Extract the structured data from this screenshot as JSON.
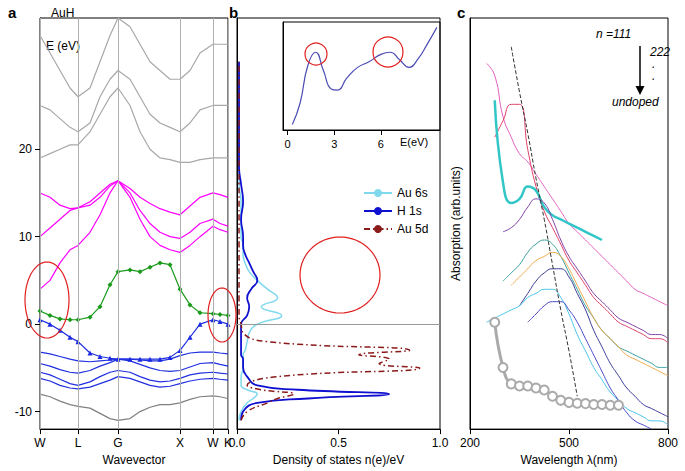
{
  "chart_data": [
    {
      "type": "line",
      "title": "a",
      "subtitle": "AuH",
      "x_label": "Wavevector",
      "y_label": "E (eV)",
      "x": [
        0,
        0.1,
        0.2,
        0.3,
        0.38,
        0.5,
        0.6,
        0.7,
        0.78,
        0.9,
        1.0,
        1.1,
        1.2,
        1.3,
        1.4,
        1.5,
        1.6,
        1.73,
        1.8,
        1.88
      ],
      "xlim": [
        0,
        1.88
      ],
      "xticks": [
        {
          "value": 0,
          "label": "W"
        },
        {
          "value": 0.38,
          "label": "L"
        },
        {
          "value": 0.78,
          "label": "G"
        },
        {
          "value": 1.4,
          "label": "X"
        },
        {
          "value": 1.73,
          "label": "W"
        },
        {
          "value": 1.88,
          "label": "K"
        }
      ],
      "ylim": [
        -12,
        35
      ],
      "yticks": [
        -10,
        0,
        10,
        20
      ],
      "grid": "x",
      "series": [
        {
          "color": "#a8a8a8",
          "marker": "none",
          "line_style": "solid",
          "values": [
            33,
            31,
            29,
            27,
            26,
            27,
            30,
            33,
            35,
            34,
            32,
            30,
            29,
            28,
            28,
            29,
            31,
            32,
            32,
            32
          ]
        },
        {
          "color": "#a8a8a8",
          "marker": "none",
          "line_style": "solid",
          "values": [
            25,
            24.5,
            23.5,
            22.5,
            22,
            23,
            26,
            28,
            29,
            28,
            26,
            24,
            23,
            22.5,
            22,
            23,
            24.5,
            25,
            25,
            25
          ]
        },
        {
          "color": "#a8a8a8",
          "marker": "none",
          "line_style": "solid",
          "values": [
            19,
            19.5,
            20,
            20.5,
            20.5,
            22,
            24,
            26,
            27,
            25,
            22,
            20,
            19,
            18.8,
            18.5,
            18.5,
            18.8,
            19,
            19,
            19
          ]
        },
        {
          "color": "#ff00ff",
          "marker": "none",
          "line_style": "solid",
          "values": [
            15,
            14.5,
            13.6,
            13.2,
            13.3,
            14,
            15,
            16,
            16.4,
            15.5,
            14.5,
            13.8,
            13.2,
            12.8,
            12.5,
            13.5,
            14.5,
            15,
            14.8,
            14.5
          ]
        },
        {
          "color": "#ff00ff",
          "marker": "none",
          "line_style": "solid",
          "values": [
            10,
            11,
            12,
            13,
            13.3,
            13.6,
            14.5,
            15.8,
            16.4,
            15,
            13,
            11.5,
            10.5,
            10,
            9.8,
            10.5,
            11.5,
            12,
            11.5,
            11.2
          ]
        },
        {
          "color": "#ff00ff",
          "marker": "none",
          "line_style": "solid",
          "values": [
            4,
            5,
            7,
            8.5,
            9,
            10.5,
            12.5,
            15,
            16.4,
            14.5,
            12,
            10,
            9,
            8.5,
            8.2,
            9,
            10,
            11.2,
            10.8,
            10.5
          ]
        },
        {
          "color": "#1a9a1a",
          "marker": "diamond",
          "line_style": "solid",
          "values": [
            1.5,
            1.0,
            0.6,
            0.5,
            0.5,
            0.8,
            2.0,
            4.5,
            6.0,
            6.2,
            6.0,
            6.5,
            7.0,
            6.8,
            4.0,
            2.2,
            1.3,
            1.2,
            1.1,
            1.0
          ]
        },
        {
          "color": "#1a2ae0",
          "marker": "triangle",
          "line_style": "solid",
          "values": [
            0.5,
            0.0,
            -0.7,
            -1.5,
            -2.0,
            -3.3,
            -3.7,
            -3.9,
            -4.0,
            -4.0,
            -4.0,
            -4.0,
            -4.0,
            -3.8,
            -3.0,
            -1.5,
            0.0,
            0.5,
            0.3,
            0.0
          ]
        },
        {
          "color": "#2030e0",
          "marker": "none",
          "line_style": "solid",
          "values": [
            -3.2,
            -3.4,
            -3.7,
            -4.0,
            -4.2,
            -4.3,
            -4.2,
            -4.1,
            -4.0,
            -4.0,
            -4.1,
            -4.2,
            -4.2,
            -4.0,
            -3.6,
            -3.3,
            -3.2,
            -3.2,
            -3.3,
            -3.4
          ]
        },
        {
          "color": "#2030e0",
          "marker": "none",
          "line_style": "solid",
          "values": [
            -4.5,
            -4.8,
            -5.2,
            -5.5,
            -5.6,
            -5.3,
            -4.8,
            -4.4,
            -4.0,
            -4.2,
            -4.6,
            -5.0,
            -5.3,
            -5.4,
            -5.3,
            -4.9,
            -4.5,
            -4.4,
            -4.6,
            -4.8
          ]
        },
        {
          "color": "#2030e0",
          "marker": "none",
          "line_style": "solid",
          "values": [
            -5.5,
            -5.8,
            -6.3,
            -6.8,
            -7.0,
            -6.6,
            -6.0,
            -5.5,
            -5.3,
            -5.5,
            -6.0,
            -6.4,
            -6.6,
            -6.5,
            -6.2,
            -5.8,
            -5.6,
            -5.5,
            -5.6,
            -5.7
          ]
        },
        {
          "color": "#2030e0",
          "marker": "none",
          "line_style": "solid",
          "values": [
            -6.2,
            -6.5,
            -7.0,
            -7.3,
            -7.4,
            -7.2,
            -6.8,
            -6.4,
            -6.0,
            -6.2,
            -6.6,
            -7.0,
            -7.2,
            -7.1,
            -6.8,
            -6.5,
            -6.3,
            -6.2,
            -6.3,
            -6.4
          ]
        },
        {
          "color": "#808080",
          "marker": "none",
          "line_style": "solid",
          "values": [
            -8,
            -8.3,
            -8.8,
            -9.2,
            -9.4,
            -9.6,
            -10.2,
            -10.8,
            -11,
            -10.8,
            -10,
            -9.5,
            -9.2,
            -9.2,
            -9.0,
            -8.6,
            -8.3,
            -8.2,
            -8.3,
            -8.5
          ]
        }
      ]
    },
    {
      "type": "line",
      "title": "b",
      "x_label": "Density of states n(e)/eV",
      "y": [
        -11,
        -10,
        -9,
        -8.5,
        -8,
        -7.5,
        -7,
        -6,
        -5,
        -4.5,
        -4,
        -3.5,
        -3,
        -2,
        -1,
        0,
        1,
        2,
        3,
        4,
        5,
        6,
        7,
        8,
        9,
        10,
        12,
        14,
        16,
        18,
        20,
        25,
        30
      ],
      "xlim": [
        0,
        1.0
      ],
      "xticks": [
        {
          "value": 0,
          "label": "0.0"
        },
        {
          "value": 0.5,
          "label": "0.5"
        },
        {
          "value": 1.0,
          "label": "1.0"
        }
      ],
      "ylim": [
        -12,
        35
      ],
      "tick_labels": "x",
      "legend": "right",
      "fermi_level": 0,
      "series": [
        {
          "name": "Au 6s",
          "color": "#7fd8ec",
          "line_style": "solid",
          "values": [
            0.01,
            0.02,
            0.05,
            0.08,
            0.1,
            0.05,
            0.02,
            0.02,
            0.03,
            0.03,
            0.03,
            0.03,
            0.04,
            0.05,
            0.06,
            0.1,
            0.22,
            0.12,
            0.2,
            0.15,
            0.1,
            0.06,
            0.04,
            0.03,
            0.03,
            0.02,
            0.02,
            0.02,
            0.01,
            0.01,
            0.01,
            0.01,
            0.01
          ]
        },
        {
          "name": "H 1s",
          "color": "#1010d0",
          "line_style": "solid",
          "values": [
            0.02,
            0.03,
            0.1,
            0.35,
            0.75,
            0.3,
            0.1,
            0.05,
            0.03,
            0.03,
            0.03,
            0.02,
            0.02,
            0.02,
            0.02,
            0.02,
            0.05,
            0.06,
            0.05,
            0.07,
            0.1,
            0.08,
            0.06,
            0.04,
            0.03,
            0.03,
            0.02,
            0.03,
            0.02,
            0.01,
            0.01,
            0.01,
            0.01
          ]
        },
        {
          "name": "Au 5d",
          "color": "#8b1a1a",
          "line_style": "dashdot",
          "values": [
            0.02,
            0.05,
            0.15,
            0.2,
            0.28,
            0.12,
            0.05,
            0.2,
            0.9,
            0.7,
            0.75,
            0.6,
            0.85,
            0.15,
            0.03,
            0.02,
            0.01,
            0.01,
            0.01,
            0.01,
            0.01,
            0.01,
            0.01,
            0.01,
            0.01,
            0.01,
            0.01,
            0.01,
            0.01,
            0.01,
            0.01,
            0.01,
            0.01
          ]
        }
      ]
    },
    {
      "type": "line",
      "x_label": "E(eV)",
      "x": [
        0.3,
        0.8,
        1.3,
        1.8,
        2.3,
        2.8,
        3.2,
        3.8,
        4.5,
        5.2,
        6.0,
        6.6,
        7.2,
        7.8,
        8.4,
        9.0,
        9.6
      ],
      "values": [
        0.05,
        0.25,
        0.6,
        0.72,
        0.55,
        0.38,
        0.37,
        0.48,
        0.58,
        0.63,
        0.7,
        0.72,
        0.65,
        0.58,
        0.66,
        0.8,
        0.95
      ],
      "color": "#4b4bb5",
      "xlim": [
        -0.3,
        9.8
      ],
      "xticks": [
        0,
        3,
        6
      ],
      "ylim": [
        0,
        1
      ],
      "tick_labels": "x"
    },
    {
      "type": "line",
      "title": "c",
      "x_label": "Wavelength λ(nm)",
      "y_label": "Absorption (arb.units)",
      "annotations": [
        "n =111",
        "222",
        ".",
        ".",
        "undoped"
      ],
      "x": [
        250,
        275,
        300,
        325,
        350,
        375,
        400,
        425,
        450,
        475,
        500,
        525,
        550,
        575,
        600,
        625,
        650,
        675,
        700,
        725,
        750,
        775,
        800
      ],
      "xlim": [
        200,
        800
      ],
      "xticks": [
        200,
        500,
        800
      ],
      "ylim": [
        0,
        10
      ],
      "tick_labels": "x",
      "series": [
        {
          "color": "#e060c0",
          "marker": "none",
          "line_style": "solid",
          "values": [
            8.9,
            8.6,
            7.6,
            7.1,
            6.7,
            6.5,
            6.2,
            5.9,
            5.6,
            5.3,
            5.0,
            4.8,
            4.6,
            4.4,
            4.2,
            4.0,
            3.8,
            3.6,
            3.4,
            3.3,
            3.2,
            3.1,
            3.0
          ]
        },
        {
          "color": "#e0406a",
          "marker": "none",
          "line_style": "solid",
          "values": [
            null,
            7.1,
            7.5,
            7.9,
            7.9,
            6.8,
            5.9,
            5.3,
            4.9,
            4.5,
            4.1,
            3.8,
            3.5,
            3.2,
            3.0,
            2.8,
            2.6,
            2.5,
            2.4,
            2.3,
            2.2,
            2.2,
            2.1
          ]
        },
        {
          "color": "#33c6c6",
          "marker": "none",
          "line_style": "solid",
          "values": [
            null,
            8.0,
            6.0,
            5.5,
            5.6,
            5.9,
            5.8,
            5.4,
            5.2,
            5.1,
            5.0,
            4.9,
            4.8,
            4.7,
            4.6,
            null,
            null,
            null,
            null,
            null,
            null,
            null,
            null
          ]
        },
        {
          "color": "#8040a8",
          "marker": "none",
          "line_style": "solid",
          "values": [
            null,
            null,
            4.8,
            4.9,
            5.1,
            5.4,
            5.6,
            5.5,
            5.1,
            4.6,
            4.2,
            3.9,
            3.6,
            3.3,
            3.1,
            2.9,
            2.7,
            2.6,
            2.5,
            2.4,
            2.3,
            2.3,
            2.2
          ]
        },
        {
          "color": "#3aa0a0",
          "marker": "none",
          "line_style": "solid",
          "values": [
            null,
            null,
            3.6,
            3.8,
            4.0,
            4.3,
            4.5,
            4.6,
            4.5,
            4.2,
            3.8,
            3.4,
            3.0,
            2.7,
            2.4,
            2.2,
            2.0,
            1.9,
            1.8,
            1.7,
            1.6,
            1.5,
            1.5
          ]
        },
        {
          "color": "#f0a848",
          "marker": "none",
          "line_style": "solid",
          "values": [
            null,
            null,
            null,
            3.5,
            3.7,
            3.9,
            4.1,
            4.2,
            4.3,
            4.2,
            3.9,
            3.5,
            3.1,
            2.7,
            2.4,
            2.2,
            2.0,
            1.8,
            1.7,
            1.6,
            1.5,
            1.4,
            1.3
          ]
        },
        {
          "color": "#3a3a98",
          "marker": "none",
          "line_style": "solid",
          "values": [
            null,
            null,
            null,
            null,
            3.0,
            3.3,
            3.6,
            3.8,
            3.9,
            3.9,
            3.7,
            3.3,
            2.9,
            2.4,
            2.0,
            1.6,
            1.3,
            1.0,
            0.8,
            0.6,
            0.5,
            0.4,
            0.3
          ]
        },
        {
          "color": "#48c4e8",
          "marker": "none",
          "line_style": "solid",
          "values": [
            2.6,
            2.7,
            2.8,
            2.9,
            3.0,
            3.2,
            3.3,
            3.4,
            3.4,
            3.2,
            2.8,
            2.3,
            1.9,
            1.5,
            1.2,
            0.9,
            0.7,
            0.5,
            0.4,
            0.3,
            0.2,
            0.2,
            0.1
          ]
        },
        {
          "color": "#4848c8",
          "marker": "none",
          "line_style": "solid",
          "values": [
            null,
            null,
            null,
            null,
            null,
            2.6,
            2.8,
            3.0,
            3.1,
            3.1,
            2.9,
            2.6,
            2.2,
            1.8,
            1.4,
            1.0,
            0.7,
            0.4,
            0.2,
            0.1,
            0.0,
            null,
            null
          ]
        },
        {
          "color": "#aaaaaa",
          "marker": "circle",
          "line_style": "solid",
          "values": [
            null,
            2.6,
            1.5,
            1.1,
            1.05,
            1.05,
            1.0,
            0.95,
            0.8,
            0.7,
            0.65,
            0.63,
            0.62,
            0.6,
            0.6,
            0.58,
            0.58,
            null,
            null,
            null,
            null,
            null,
            null
          ]
        },
        {
          "color": "#333333",
          "marker": "none",
          "line_style": "dashed",
          "values": [
            null,
            null,
            null,
            9.3,
            8.2,
            7.2,
            6.1,
            5.1,
            4.0,
            2.9,
            1.9,
            0.8,
            null,
            null,
            null,
            null,
            null,
            null,
            null,
            null,
            null,
            null,
            null
          ]
        }
      ]
    }
  ]
}
